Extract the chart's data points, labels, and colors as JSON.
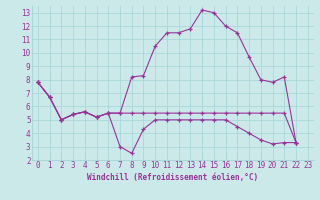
{
  "xlabel": "Windchill (Refroidissement éolien,°C)",
  "xlim": [
    -0.5,
    23.5
  ],
  "ylim": [
    2,
    13.5
  ],
  "xticks": [
    0,
    1,
    2,
    3,
    4,
    5,
    6,
    7,
    8,
    9,
    10,
    11,
    12,
    13,
    14,
    15,
    16,
    17,
    18,
    19,
    20,
    21,
    22,
    23
  ],
  "yticks": [
    2,
    3,
    4,
    5,
    6,
    7,
    8,
    9,
    10,
    11,
    12,
    13
  ],
  "bg_color": "#cbe9e9",
  "line_color": "#993399",
  "grid_color": "#a8d8d8",
  "series1_x": [
    0,
    1,
    2,
    3,
    4,
    5,
    6,
    7,
    8,
    9,
    10,
    11,
    12,
    13,
    14,
    15,
    16,
    17,
    18,
    19,
    20,
    21,
    22
  ],
  "series1_y": [
    7.8,
    6.7,
    5.0,
    5.4,
    5.6,
    5.2,
    5.5,
    5.5,
    5.5,
    5.5,
    5.5,
    5.5,
    5.5,
    5.5,
    5.5,
    5.5,
    5.5,
    5.5,
    5.5,
    5.5,
    5.5,
    5.5,
    3.3
  ],
  "series2_x": [
    0,
    1,
    2,
    3,
    4,
    5,
    6,
    7,
    8,
    9,
    10,
    11,
    12,
    13,
    14,
    15,
    16,
    17,
    18,
    19,
    20,
    21,
    22
  ],
  "series2_y": [
    7.8,
    6.7,
    5.0,
    5.4,
    5.6,
    5.2,
    5.5,
    3.0,
    2.5,
    4.3,
    5.0,
    5.0,
    5.0,
    5.0,
    5.0,
    5.0,
    5.0,
    4.5,
    4.0,
    3.5,
    3.2,
    3.3,
    3.3
  ],
  "series3_x": [
    0,
    1,
    2,
    3,
    4,
    5,
    6,
    7,
    8,
    9,
    10,
    11,
    12,
    13,
    14,
    15,
    16,
    17,
    18,
    19,
    20,
    21,
    22
  ],
  "series3_y": [
    7.8,
    6.7,
    5.0,
    5.4,
    5.6,
    5.2,
    5.5,
    5.5,
    8.2,
    8.3,
    10.5,
    11.5,
    11.5,
    11.8,
    13.2,
    13.0,
    12.0,
    11.5,
    9.7,
    8.0,
    7.8,
    8.2,
    3.3
  ]
}
